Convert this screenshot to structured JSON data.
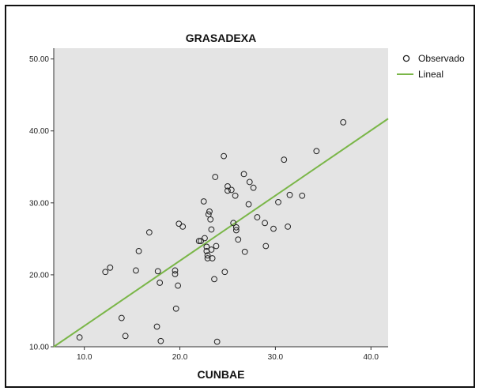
{
  "chart_data": {
    "type": "scatter",
    "title": "GRASADEXA",
    "xlabel": "CUNBAE",
    "ylabel": "",
    "xlim": [
      6.8,
      41.8
    ],
    "ylim": [
      10.0,
      51.5
    ],
    "x_ticks": [
      10,
      20,
      30,
      40
    ],
    "x_tick_labels": [
      "10.0",
      "20.0",
      "30.0",
      "40.0"
    ],
    "y_ticks": [
      10,
      20,
      30,
      40,
      50
    ],
    "y_tick_labels": [
      "10.00",
      "20.00",
      "30.00",
      "40.00",
      "50.00"
    ],
    "grid": false,
    "legend_position": "right",
    "background_color": "#e4e4e4",
    "line_color": "#7ab648",
    "marker_color": "#222222",
    "series": [
      {
        "name": "Observado",
        "kind": "scatter",
        "points": [
          [
            9.5,
            11.3
          ],
          [
            12.2,
            20.4
          ],
          [
            12.7,
            21.0
          ],
          [
            13.9,
            14.0
          ],
          [
            14.3,
            11.5
          ],
          [
            15.4,
            20.6
          ],
          [
            15.7,
            23.3
          ],
          [
            16.8,
            25.9
          ],
          [
            17.6,
            12.8
          ],
          [
            17.7,
            20.5
          ],
          [
            17.9,
            18.9
          ],
          [
            18.0,
            10.8
          ],
          [
            19.5,
            20.6
          ],
          [
            19.5,
            20.1
          ],
          [
            19.6,
            15.3
          ],
          [
            19.8,
            18.5
          ],
          [
            19.9,
            27.1
          ],
          [
            20.3,
            26.7
          ],
          [
            22.0,
            24.7
          ],
          [
            22.2,
            24.7
          ],
          [
            22.5,
            30.2
          ],
          [
            22.6,
            25.1
          ],
          [
            22.8,
            23.9
          ],
          [
            22.8,
            23.3
          ],
          [
            22.9,
            22.7
          ],
          [
            22.9,
            22.3
          ],
          [
            23.0,
            28.4
          ],
          [
            23.1,
            28.8
          ],
          [
            23.2,
            27.7
          ],
          [
            23.3,
            23.5
          ],
          [
            23.3,
            26.3
          ],
          [
            23.4,
            22.3
          ],
          [
            23.6,
            19.4
          ],
          [
            23.7,
            33.6
          ],
          [
            23.8,
            24.0
          ],
          [
            23.9,
            10.7
          ],
          [
            24.6,
            36.5
          ],
          [
            24.7,
            20.4
          ],
          [
            25.0,
            32.3
          ],
          [
            25.0,
            31.7
          ],
          [
            25.4,
            31.8
          ],
          [
            25.6,
            27.2
          ],
          [
            25.8,
            31.0
          ],
          [
            25.9,
            26.6
          ],
          [
            25.9,
            26.2
          ],
          [
            26.1,
            24.9
          ],
          [
            26.7,
            34.0
          ],
          [
            26.8,
            23.2
          ],
          [
            27.2,
            29.8
          ],
          [
            27.3,
            32.9
          ],
          [
            27.7,
            32.1
          ],
          [
            28.1,
            28.0
          ],
          [
            28.9,
            27.2
          ],
          [
            29.0,
            24.0
          ],
          [
            29.8,
            26.4
          ],
          [
            30.3,
            30.1
          ],
          [
            30.9,
            36.0
          ],
          [
            31.3,
            26.7
          ],
          [
            31.5,
            31.1
          ],
          [
            32.8,
            31.0
          ],
          [
            34.3,
            37.2
          ],
          [
            37.1,
            41.2
          ]
        ]
      },
      {
        "name": "Lineal",
        "kind": "line",
        "points": [
          [
            6.8,
            10.0
          ],
          [
            41.8,
            41.7
          ]
        ]
      }
    ]
  },
  "legend": {
    "observed_label": "Observado",
    "fit_label": "Lineal"
  }
}
